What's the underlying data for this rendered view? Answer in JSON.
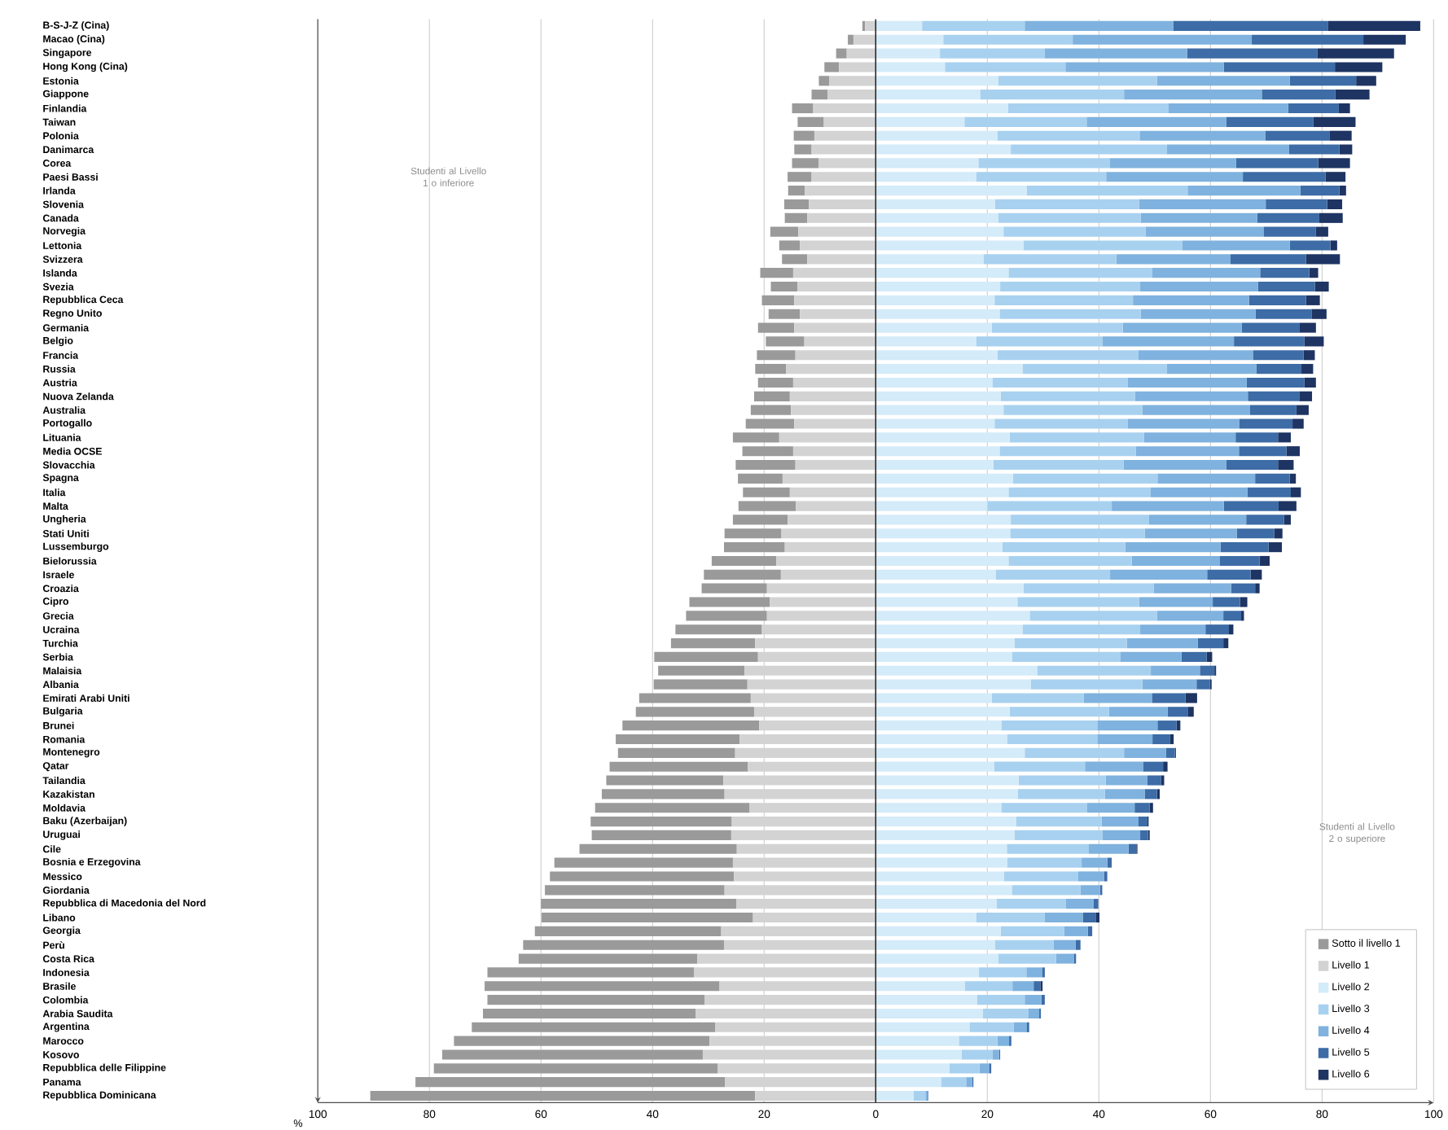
{
  "chart_data": {
    "type": "bar",
    "orientation": "horizontal",
    "stacked": true,
    "xlabel": "%",
    "annotations": [
      "Studenti al Livello 1 o inferiore",
      "Studenti al Livello 2 o superiore"
    ],
    "categories": [
      "B-S-J-Z (Cina)",
      "Macao (Cina)",
      "Singapore",
      "Hong Kong (Cina)",
      "Estonia",
      "Giappone",
      "Finlandia",
      "Taiwan",
      "Polonia",
      "Danimarca",
      "Corea",
      "Paesi Bassi",
      "Irlanda",
      "Slovenia",
      "Canada",
      "Norvegia",
      "Lettonia",
      "Svizzera",
      "Islanda",
      "Svezia",
      "Repubblica Ceca",
      "Regno Unito",
      "Germania",
      "Belgio",
      "Francia",
      "Russia",
      "Austria",
      "Nuova Zelanda",
      "Australia",
      "Portogallo",
      "Lituania",
      "Media OCSE",
      "Slovacchia",
      "Spagna",
      "Italia",
      "Malta",
      "Ungheria",
      "Stati Uniti",
      "Lussemburgo",
      "Bielorussia",
      "Israele",
      "Croazia",
      "Cipro",
      "Grecia",
      "Ucraina",
      "Turchia",
      "Serbia",
      "Malaisia",
      "Albania",
      "Emirati Arabi Uniti",
      "Bulgaria",
      "Brunei",
      "Romania",
      "Montenegro",
      "Qatar",
      "Tailandia",
      "Kazakistan",
      "Moldavia",
      "Baku (Azerbaijan)",
      "Uruguai",
      "Cile",
      "Bosnia e Erzegovina",
      "Messico",
      "Giordania",
      "Repubblica di Macedonia del Nord",
      "Libano",
      "Georgia",
      "Perù",
      "Costa Rica",
      "Indonesia",
      "Brasile",
      "Colombia",
      "Arabia Saudita",
      "Argentina",
      "Marocco",
      "Kosovo",
      "Repubblica delle Filippine",
      "Panama",
      "Repubblica Dominicana"
    ],
    "series": [
      {
        "name": "Livello 1",
        "color": "#d3d3d3",
        "values": [
          -1.9,
          -4.0,
          -5.2,
          -6.6,
          -8.3,
          -8.6,
          -11.2,
          -9.3,
          -11.0,
          -11.5,
          -10.2,
          -11.5,
          -12.7,
          -12.0,
          -12.3,
          -13.9,
          -13.6,
          -12.3,
          -14.8,
          -14.0,
          -14.6,
          -13.6,
          -14.6,
          -12.8,
          -14.4,
          -16.1,
          -14.8,
          -15.4,
          -15.2,
          -14.6,
          -17.3,
          -14.8,
          -14.4,
          -16.7,
          -15.4,
          -14.3,
          -15.8,
          -16.9,
          -16.3,
          -17.8,
          -17.0,
          -19.5,
          -19.0,
          -19.5,
          -20.4,
          -21.6,
          -21.1,
          -23.5,
          -23.0,
          -22.4,
          -21.8,
          -20.9,
          -24.4,
          -25.2,
          -22.9,
          -27.3,
          -27.1,
          -22.6,
          -25.8,
          -25.9,
          -24.9,
          -25.6,
          -25.4,
          -27.1,
          -25.0,
          -22.0,
          -27.7,
          -27.2,
          -32.0,
          -32.6,
          -28.0,
          -30.7,
          -32.3,
          -28.8,
          -29.8,
          -31.0,
          -28.3,
          -27.0,
          -21.6
        ]
      },
      {
        "name": "Sotto il livello 1",
        "color": "#9a9a9a",
        "values": [
          -0.5,
          -1.0,
          -1.9,
          -2.6,
          -1.9,
          -2.9,
          -3.8,
          -4.7,
          -3.7,
          -3.1,
          -4.8,
          -4.3,
          -3.0,
          -4.4,
          -4.0,
          -5.0,
          -3.7,
          -4.5,
          -5.9,
          -4.8,
          -5.8,
          -5.6,
          -6.5,
          -6.9,
          -6.9,
          -5.5,
          -6.3,
          -6.4,
          -7.2,
          -8.7,
          -8.3,
          -9.1,
          -10.7,
          -8.0,
          -8.4,
          -10.3,
          -9.8,
          -10.2,
          -10.9,
          -11.6,
          -13.8,
          -11.7,
          -14.4,
          -14.5,
          -15.5,
          -15.1,
          -18.6,
          -15.5,
          -16.8,
          -20.0,
          -21.2,
          -24.5,
          -22.2,
          -21.0,
          -24.8,
          -21.0,
          -22.0,
          -27.7,
          -25.3,
          -25.0,
          -28.2,
          -32.0,
          -33.0,
          -32.2,
          -35.0,
          -37.9,
          -33.4,
          -36.0,
          -32.0,
          -37.0,
          -42.1,
          -38.9,
          -38.1,
          -43.6,
          -45.8,
          -46.7,
          -50.9,
          -55.5,
          -69.0
        ]
      },
      {
        "name": "Livello 2",
        "color": "#d4ebf9",
        "values": [
          8.3,
          12.1,
          11.5,
          12.4,
          22.0,
          18.7,
          23.7,
          15.9,
          21.8,
          24.2,
          18.4,
          18.0,
          27.1,
          21.4,
          22.0,
          22.9,
          26.5,
          19.3,
          23.8,
          22.3,
          21.3,
          22.2,
          20.8,
          18.0,
          21.8,
          26.3,
          20.9,
          22.4,
          22.9,
          21.3,
          24.0,
          22.2,
          21.1,
          24.6,
          23.8,
          20.0,
          24.2,
          24.1,
          22.7,
          23.8,
          21.5,
          26.5,
          25.4,
          27.6,
          26.3,
          24.9,
          24.4,
          29.0,
          27.8,
          20.8,
          24.0,
          22.5,
          23.6,
          26.7,
          21.2,
          25.6,
          25.5,
          22.5,
          25.2,
          24.9,
          23.5,
          23.6,
          23.0,
          24.4,
          21.7,
          18.0,
          22.4,
          21.4,
          22.0,
          18.5,
          16.0,
          18.2,
          19.2,
          16.8,
          14.9,
          15.4,
          13.2,
          11.7,
          6.8
        ]
      },
      {
        "name": "Livello 3",
        "color": "#a8d1f0",
        "values": [
          18.4,
          23.2,
          18.8,
          21.6,
          28.4,
          25.8,
          28.8,
          21.9,
          25.5,
          28.0,
          23.5,
          23.3,
          28.8,
          25.8,
          25.5,
          25.5,
          28.4,
          23.8,
          25.7,
          25.1,
          24.8,
          25.3,
          23.5,
          22.6,
          25.3,
          25.9,
          24.3,
          24.1,
          24.9,
          23.9,
          24.1,
          24.4,
          23.3,
          25.9,
          25.4,
          22.3,
          24.8,
          24.1,
          22.0,
          22.1,
          20.5,
          23.3,
          21.8,
          22.8,
          21.1,
          20.1,
          19.4,
          20.3,
          20.0,
          16.5,
          17.8,
          17.2,
          16.1,
          17.8,
          16.3,
          15.6,
          15.6,
          15.4,
          15.3,
          15.7,
          14.7,
          13.3,
          13.3,
          12.3,
          12.4,
          12.3,
          11.4,
          10.5,
          10.3,
          8.5,
          8.5,
          8.5,
          8.1,
          7.9,
          6.9,
          5.5,
          5.4,
          4.5,
          2.1
        ]
      },
      {
        "name": "Livello 4",
        "color": "#7fb2de",
        "values": [
          26.6,
          32.1,
          25.5,
          28.4,
          23.8,
          24.7,
          21.4,
          25.0,
          22.5,
          21.9,
          22.7,
          24.5,
          20.2,
          22.7,
          20.9,
          21.1,
          19.3,
          20.5,
          19.4,
          21.1,
          20.8,
          20.6,
          21.3,
          23.6,
          20.5,
          16.0,
          21.3,
          20.2,
          19.3,
          20.0,
          16.4,
          18.5,
          18.4,
          17.5,
          17.4,
          20.1,
          17.4,
          16.5,
          17.1,
          15.8,
          17.4,
          13.9,
          13.2,
          11.9,
          11.7,
          12.7,
          11.0,
          8.8,
          9.7,
          12.2,
          10.5,
          10.8,
          9.9,
          7.5,
          10.4,
          7.5,
          7.1,
          8.5,
          6.6,
          6.8,
          7.1,
          4.6,
          4.6,
          3.5,
          4.9,
          6.8,
          4.2,
          3.9,
          3.2,
          2.8,
          3.8,
          3.0,
          2.0,
          2.4,
          2.1,
          1.2,
          1.7,
          1.1,
          0.4
        ]
      },
      {
        "name": "Livello 5",
        "color": "#3d6ca6",
        "values": [
          27.8,
          20.0,
          23.4,
          19.9,
          11.9,
          13.2,
          9.1,
          15.6,
          11.6,
          9.0,
          14.7,
          14.8,
          7.0,
          11.0,
          11.1,
          9.4,
          7.3,
          13.5,
          8.8,
          10.2,
          10.2,
          10.0,
          10.4,
          12.6,
          9.1,
          8.1,
          10.3,
          9.2,
          8.3,
          9.5,
          7.6,
          8.5,
          9.3,
          6.2,
          7.8,
          9.8,
          6.8,
          6.7,
          8.6,
          7.1,
          7.8,
          4.3,
          4.9,
          3.2,
          4.2,
          4.6,
          4.5,
          2.6,
          2.4,
          6.0,
          3.7,
          3.4,
          3.1,
          1.6,
          3.6,
          2.4,
          2.2,
          2.7,
          1.6,
          1.4,
          1.4,
          0.8,
          0.6,
          0.4,
          0.9,
          2.4,
          0.8,
          0.9,
          0.4,
          0.5,
          1.2,
          0.6,
          0.3,
          0.4,
          0.4,
          0.2,
          0.4,
          0.2,
          0.1
        ]
      },
      {
        "name": "Livello 6",
        "color": "#1e3462",
        "values": [
          16.5,
          7.6,
          13.7,
          8.5,
          3.6,
          6.1,
          2.0,
          7.6,
          3.9,
          2.3,
          5.7,
          3.6,
          1.2,
          2.7,
          4.2,
          2.2,
          1.2,
          6.1,
          1.6,
          2.5,
          2.5,
          2.7,
          2.9,
          3.5,
          2.0,
          2.1,
          2.1,
          2.3,
          2.2,
          2.0,
          2.3,
          2.4,
          2.8,
          1.1,
          1.8,
          3.2,
          1.2,
          1.5,
          2.4,
          1.8,
          2.0,
          0.8,
          1.3,
          0.5,
          0.8,
          0.9,
          1.0,
          0.3,
          0.3,
          2.1,
          1.0,
          0.7,
          0.7,
          0.2,
          0.8,
          0.6,
          0.5,
          0.6,
          0.2,
          0.3,
          0.2,
          null,
          null,
          null,
          null,
          0.6,
          null,
          null,
          null,
          null,
          0.4,
          null,
          null,
          null,
          null,
          null,
          null,
          null,
          null
        ]
      }
    ],
    "xlim": [
      -100,
      100
    ],
    "xticks": [
      {
        "value": -100,
        "label": "100"
      },
      {
        "value": -80,
        "label": "80"
      },
      {
        "value": -60,
        "label": "60"
      },
      {
        "value": -40,
        "label": "40"
      },
      {
        "value": -20,
        "label": "20"
      },
      0,
      20,
      40,
      60,
      80,
      100
    ],
    "grid": "x",
    "legend": "bottom right",
    "ref_lines": [
      {
        "axis": "x",
        "value": 0,
        "color": "#222222"
      }
    ]
  }
}
